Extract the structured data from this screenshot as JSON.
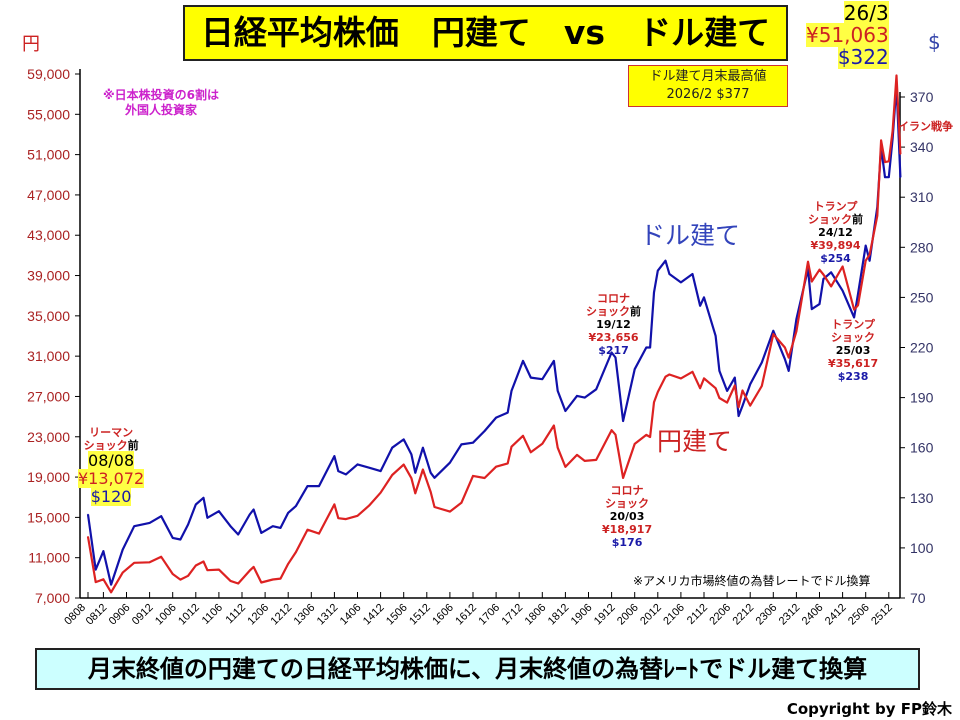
{
  "title": "日経平均株価　円建て　vs　ドル建て",
  "subtitle": "月末終値の円建ての日経平均株価に、月末終値の為替ﾚｰﾄでドル建て換算",
  "copyright": "Copyright by FP鈴木",
  "notes": {
    "foreign_line1": "※日本株投資の6割は",
    "foreign_line2": "外国人投資家",
    "fx_note": "※アメリカ市場終値の為替レートでドル換算"
  },
  "record_box": {
    "line1": "ドル建て月末最高値",
    "line2": "2026/2 $377"
  },
  "annotations": {
    "lehman": {
      "l1": "リーマン",
      "l2": "ショック",
      "mae": "前",
      "date": "08/08",
      "yen": "¥13,072",
      "usd": "$120"
    },
    "corona_pre": {
      "l1": "コロナ",
      "l2": "ショック",
      "mae": "前",
      "date": "19/12",
      "yen": "¥23,656",
      "usd": "$217"
    },
    "corona": {
      "l1": "コロナ",
      "l2": "ショック",
      "date": "20/03",
      "yen": "¥18,917",
      "usd": "$176"
    },
    "trump_pre": {
      "l1": "トランプ",
      "l2": "ショック",
      "mae": "前",
      "date": "24/12",
      "yen": "¥39,894",
      "usd": "$254"
    },
    "trump": {
      "l1": "トランプ",
      "l2": "ショック",
      "date": "25/03",
      "yen": "¥35,617",
      "usd": "$238"
    },
    "iran": {
      "l1": "イラン戦争"
    },
    "latest": {
      "date": "26/3",
      "yen": "¥51,063",
      "usd": "$322"
    }
  },
  "chart_data": {
    "type": "line",
    "title": "日経平均株価　円建て　vs　ドル建て",
    "ylabel_left": "円",
    "ylabel_right": "$",
    "ylim_left": [
      7000,
      59000
    ],
    "ylim_right": [
      70,
      370
    ],
    "yticks_left": [
      "7,000",
      "11,000",
      "15,000",
      "19,000",
      "23,000",
      "27,000",
      "31,000",
      "35,000",
      "39,000",
      "43,000",
      "47,000",
      "51,000",
      "55,000",
      "59,000"
    ],
    "yticks_right": [
      "70",
      "100",
      "130",
      "160",
      "190",
      "220",
      "250",
      "280",
      "310",
      "340",
      "370"
    ],
    "xticks": [
      "0808",
      "0812",
      "0906",
      "0912",
      "1006",
      "1012",
      "1106",
      "1112",
      "1206",
      "1212",
      "1306",
      "1312",
      "1406",
      "1412",
      "1506",
      "1512",
      "1606",
      "1612",
      "1706",
      "1712",
      "1806",
      "1812",
      "1906",
      "1912",
      "2006",
      "2012",
      "2106",
      "2112",
      "2206",
      "2212",
      "2306",
      "2312",
      "2406",
      "2412",
      "2506",
      "2512"
    ],
    "x": [
      "0808",
      "0810",
      "0812",
      "0902",
      "0905",
      "0908",
      "0912",
      "1003",
      "1006",
      "1008",
      "1010",
      "1012",
      "1102",
      "1103",
      "1106",
      "1109",
      "1111",
      "1202",
      "1203",
      "1205",
      "1208",
      "1210",
      "1212",
      "1302",
      "1305",
      "1308",
      "1312",
      "1401",
      "1403",
      "1406",
      "1409",
      "1412",
      "1503",
      "1506",
      "1508",
      "1509",
      "1511",
      "1601",
      "1602",
      "1606",
      "1609",
      "1612",
      "1703",
      "1706",
      "1709",
      "1710",
      "1801",
      "1803",
      "1806",
      "1809",
      "1810",
      "1812",
      "1903",
      "1905",
      "1908",
      "1912",
      "2001",
      "2003",
      "2006",
      "2009",
      "2010",
      "2011",
      "2012",
      "2102",
      "2103",
      "2106",
      "2109",
      "2111",
      "2112",
      "2203",
      "2204",
      "2206",
      "2208",
      "2209",
      "2210",
      "2212",
      "2303",
      "2306",
      "2309",
      "2310",
      "2312",
      "2403",
      "2404",
      "2406",
      "2407",
      "2409",
      "2412",
      "2503",
      "2504",
      "2506",
      "2507",
      "2509",
      "2510",
      "2511",
      "2512",
      "2601",
      "2602",
      "2603"
    ],
    "series": [
      {
        "name": "円建て",
        "axis": "left",
        "color": "#dd2222",
        "values": [
          13072,
          8577,
          8860,
          7568,
          9523,
          10493,
          10546,
          11090,
          9383,
          8824,
          9202,
          10229,
          10624,
          9755,
          9816,
          8700,
          8434,
          9723,
          10084,
          8543,
          8840,
          8928,
          10395,
          11559,
          13775,
          13389,
          16291,
          14915,
          14828,
          15162,
          16174,
          17451,
          19207,
          20236,
          18890,
          17388,
          19747,
          17518,
          16027,
          15576,
          16450,
          19114,
          18909,
          20033,
          20356,
          22011,
          23098,
          21454,
          22305,
          24120,
          21920,
          20014,
          21205,
          20601,
          20704,
          23656,
          23205,
          18917,
          22288,
          23185,
          22977,
          26433,
          27444,
          28966,
          29178,
          28791,
          29452,
          27821,
          28791,
          27821,
          26847,
          26393,
          28091,
          25937,
          27587,
          26094,
          28041,
          33189,
          31857,
          30858,
          33464,
          40369,
          38405,
          39583,
          39101,
          37919,
          39894,
          35617,
          36045,
          40487,
          41069,
          44932,
          52411,
          50253,
          50339,
          53322,
          58850,
          51063
        ]
      },
      {
        "name": "ドル建て",
        "axis": "right",
        "color": "#1111aa",
        "values": [
          120,
          87,
          98,
          78,
          99,
          113,
          115,
          119,
          106,
          105,
          114,
          126,
          130,
          118,
          122,
          113,
          108,
          120,
          123,
          109,
          113,
          112,
          121,
          125,
          137,
          137,
          155,
          146,
          144,
          150,
          148,
          146,
          160,
          165,
          156,
          145,
          160,
          145,
          142,
          151,
          162,
          163,
          170,
          178,
          181,
          194,
          212,
          202,
          201,
          212,
          194,
          182,
          191,
          190,
          195,
          217,
          214,
          176,
          207,
          220,
          220,
          253,
          266,
          272,
          264,
          259,
          264,
          245,
          250,
          227,
          206,
          194,
          202,
          179,
          185,
          198,
          211,
          230,
          213,
          206,
          237,
          267,
          243,
          246,
          261,
          265,
          254,
          238,
          252,
          281,
          272,
          304,
          340,
          322,
          322,
          345,
          377,
          322
        ]
      }
    ]
  }
}
